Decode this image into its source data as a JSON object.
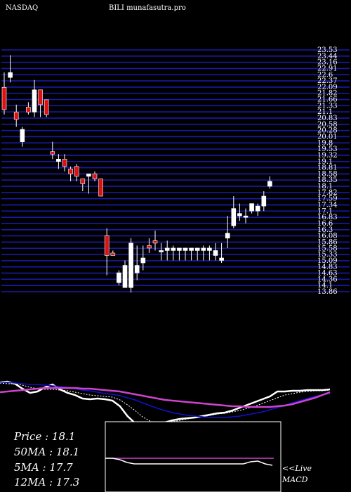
{
  "header": {
    "exchange": "NASDAQ",
    "title": "BILI munafasutra.pro"
  },
  "legend": {
    "price": "Price   : 18.1",
    "ma50": "50MA : 18.1",
    "ma5": "5MA : 17.7",
    "ma12": "12MA : 17.3"
  },
  "macd_panel": {
    "live": "<<Live",
    "label": "MACD"
  },
  "colors": {
    "grid": "#1a1aa8",
    "bull": "#ffffff",
    "bear": "#dd1111",
    "ma_blue": "#1111cc",
    "ma_magenta": "#cc44cc",
    "text": "#ffffff"
  },
  "chart_data": {
    "type": "candlestick",
    "price_range": [
      13.65,
      23.6
    ],
    "price_ticks": [
      "23.53",
      "23.44",
      "23.16",
      "22.91",
      "22.6",
      "22.37",
      "22.09",
      "21.82",
      "21.66",
      "21.33",
      "21.1",
      "20.83",
      "20.58",
      "20.28",
      "20.01",
      "19.8",
      "19.53",
      "19.32",
      "19.1",
      "18.81",
      "18.58",
      "18.35",
      "18.1",
      "17.82",
      "17.59",
      "17.34",
      "17.1",
      "16.83",
      "16.6",
      "16.3",
      "16.08",
      "15.86",
      "15.58",
      "15.33",
      "15.09",
      "14.83",
      "14.63",
      "14.36",
      "14.1",
      "13.86"
    ],
    "candles": [
      {
        "o": 22.0,
        "c": 21.1,
        "h": 22.6,
        "l": 20.9
      },
      {
        "o": 22.4,
        "c": 22.6,
        "h": 23.3,
        "l": 22.2
      },
      {
        "o": 21.0,
        "c": 20.7,
        "h": 21.3,
        "l": 20.4
      },
      {
        "o": 19.8,
        "c": 20.3,
        "h": 20.4,
        "l": 19.6
      },
      {
        "o": 21.2,
        "c": 21.0,
        "h": 21.4,
        "l": 20.9
      },
      {
        "o": 21.0,
        "c": 21.9,
        "h": 22.3,
        "l": 20.8
      },
      {
        "o": 21.9,
        "c": 21.3,
        "h": 21.9,
        "l": 20.8
      },
      {
        "o": 21.5,
        "c": 20.9,
        "h": 21.5,
        "l": 20.8
      },
      {
        "o": 19.4,
        "c": 19.3,
        "h": 19.8,
        "l": 19.1
      },
      {
        "o": 19.0,
        "c": 19.1,
        "h": 19.3,
        "l": 18.7
      },
      {
        "o": 19.1,
        "c": 18.8,
        "h": 19.3,
        "l": 18.6
      },
      {
        "o": 18.7,
        "c": 18.5,
        "h": 18.8,
        "l": 18.2
      },
      {
        "o": 18.8,
        "c": 18.4,
        "h": 18.9,
        "l": 18.2
      },
      {
        "o": 18.3,
        "c": 18.1,
        "h": 18.3,
        "l": 17.8
      },
      {
        "o": 18.4,
        "c": 18.5,
        "h": 18.5,
        "l": 17.7
      },
      {
        "o": 18.5,
        "c": 18.3,
        "h": 18.6,
        "l": 18.2
      },
      {
        "o": 18.3,
        "c": 17.6,
        "h": 18.3,
        "l": 17.6
      },
      {
        "o": 16.0,
        "c": 15.2,
        "h": 16.3,
        "l": 14.4
      },
      {
        "o": 15.3,
        "c": 15.2,
        "h": 15.4,
        "l": 15.2
      },
      {
        "o": 14.1,
        "c": 14.5,
        "h": 14.6,
        "l": 14.0
      },
      {
        "o": 13.9,
        "c": 14.8,
        "h": 15.0,
        "l": 13.9
      },
      {
        "o": 13.9,
        "c": 15.7,
        "h": 15.9,
        "l": 13.7
      },
      {
        "o": 14.5,
        "c": 14.8,
        "h": 15.6,
        "l": 14.2
      },
      {
        "o": 14.9,
        "c": 15.1,
        "h": 15.6,
        "l": 14.6
      },
      {
        "o": 15.6,
        "c": 15.5,
        "h": 15.9,
        "l": 15.3
      },
      {
        "o": 15.8,
        "c": 15.7,
        "h": 16.2,
        "l": 15.4
      },
      {
        "o": 15.4,
        "c": 15.4,
        "h": 15.7,
        "l": 15.0
      },
      {
        "o": 15.4,
        "c": 15.5,
        "h": 15.8,
        "l": 15.0
      },
      {
        "o": 15.4,
        "c": 15.5,
        "h": 15.6,
        "l": 15.0
      },
      {
        "o": 15.4,
        "c": 15.5,
        "h": 15.5,
        "l": 15.0
      },
      {
        "o": 15.4,
        "c": 15.5,
        "h": 15.5,
        "l": 15.0
      },
      {
        "o": 15.4,
        "c": 15.5,
        "h": 15.5,
        "l": 15.0
      },
      {
        "o": 15.4,
        "c": 15.5,
        "h": 15.5,
        "l": 15.0
      },
      {
        "o": 15.4,
        "c": 15.5,
        "h": 15.6,
        "l": 15.0
      },
      {
        "o": 15.4,
        "c": 15.5,
        "h": 15.6,
        "l": 15.0
      },
      {
        "o": 15.2,
        "c": 15.4,
        "h": 15.7,
        "l": 15.0
      },
      {
        "o": 15.0,
        "c": 15.1,
        "h": 15.7,
        "l": 14.9
      },
      {
        "o": 15.9,
        "c": 16.1,
        "h": 16.8,
        "l": 15.5
      },
      {
        "o": 16.4,
        "c": 17.1,
        "h": 17.6,
        "l": 16.3
      },
      {
        "o": 16.8,
        "c": 16.9,
        "h": 17.3,
        "l": 16.6
      },
      {
        "o": 16.8,
        "c": 16.8,
        "h": 17.1,
        "l": 16.5
      },
      {
        "o": 17.0,
        "c": 17.3,
        "h": 17.3,
        "l": 16.9
      },
      {
        "o": 17.0,
        "c": 17.2,
        "h": 17.3,
        "l": 16.8
      },
      {
        "o": 17.2,
        "c": 17.6,
        "h": 17.8,
        "l": 17.0
      },
      {
        "o": 18.0,
        "c": 18.2,
        "h": 18.4,
        "l": 17.9
      }
    ],
    "indicator_lines": [
      {
        "name": "price",
        "color": "#ffffff",
        "width": 2.5,
        "values": [
          0.34,
          0.33,
          0.36,
          0.43,
          0.49,
          0.47,
          0.41,
          0.37,
          0.44,
          0.49,
          0.52,
          0.57,
          0.58,
          0.57,
          0.58,
          0.6,
          0.68,
          0.82,
          0.92,
          0.97,
          0.97,
          0.94,
          0.91,
          0.88,
          0.86,
          0.85,
          0.84,
          0.82,
          0.8,
          0.78,
          0.77,
          0.74,
          0.7,
          0.66,
          0.62,
          0.58,
          0.54,
          0.47,
          0.47,
          0.46,
          0.46,
          0.45,
          0.45,
          0.45,
          0.44
        ]
      },
      {
        "name": "5MA",
        "color": "#ffffff",
        "width": 1,
        "dashed": true,
        "values": [
          0.35,
          0.36,
          0.36,
          0.38,
          0.41,
          0.43,
          0.44,
          0.44,
          0.45,
          0.46,
          0.48,
          0.5,
          0.52,
          0.53,
          0.54,
          0.55,
          0.59,
          0.66,
          0.74,
          0.83,
          0.89,
          0.92,
          0.92,
          0.9,
          0.88,
          0.86,
          0.84,
          0.83,
          0.81,
          0.79,
          0.78,
          0.76,
          0.74,
          0.71,
          0.68,
          0.64,
          0.6,
          0.56,
          0.52,
          0.5,
          0.48,
          0.47,
          0.46,
          0.46,
          0.45
        ]
      },
      {
        "name": "12MA",
        "color": "#1111cc",
        "width": 1.5,
        "values": [
          0.34,
          0.34,
          0.35,
          0.36,
          0.37,
          0.37,
          0.38,
          0.39,
          0.4,
          0.41,
          0.43,
          0.45,
          0.46,
          0.48,
          0.5,
          0.51,
          0.53,
          0.56,
          0.59,
          0.63,
          0.67,
          0.71,
          0.74,
          0.77,
          0.79,
          0.81,
          0.82,
          0.83,
          0.84,
          0.84,
          0.84,
          0.83,
          0.82,
          0.8,
          0.78,
          0.76,
          0.73,
          0.7,
          0.67,
          0.63,
          0.6,
          0.57,
          0.54,
          0.52,
          0.5
        ]
      },
      {
        "name": "50MA",
        "color": "#cc44cc",
        "width": 2.5,
        "values": [
          0.48,
          0.47,
          0.46,
          0.45,
          0.44,
          0.43,
          0.42,
          0.42,
          0.42,
          0.42,
          0.42,
          0.43,
          0.43,
          0.44,
          0.45,
          0.46,
          0.47,
          0.49,
          0.51,
          0.53,
          0.55,
          0.57,
          0.59,
          0.6,
          0.61,
          0.62,
          0.63,
          0.64,
          0.65,
          0.66,
          0.67,
          0.68,
          0.68,
          0.69,
          0.69,
          0.69,
          0.69,
          0.68,
          0.67,
          0.65,
          0.62,
          0.59,
          0.56,
          0.52,
          0.48
        ]
      }
    ],
    "macd": {
      "macd": [
        0.52,
        0.52,
        0.54,
        0.58,
        0.6,
        0.6,
        0.6,
        0.6,
        0.6,
        0.6,
        0.6,
        0.6,
        0.6,
        0.6,
        0.6,
        0.6,
        0.6,
        0.6,
        0.6,
        0.6,
        0.57,
        0.56,
        0.6,
        0.62
      ],
      "signal": [
        0.52,
        0.52,
        0.52,
        0.52,
        0.52,
        0.52,
        0.52,
        0.52,
        0.52,
        0.52,
        0.52,
        0.52,
        0.52,
        0.52,
        0.52,
        0.52,
        0.52,
        0.52,
        0.52,
        0.52,
        0.52,
        0.52,
        0.52,
        0.52
      ]
    }
  }
}
